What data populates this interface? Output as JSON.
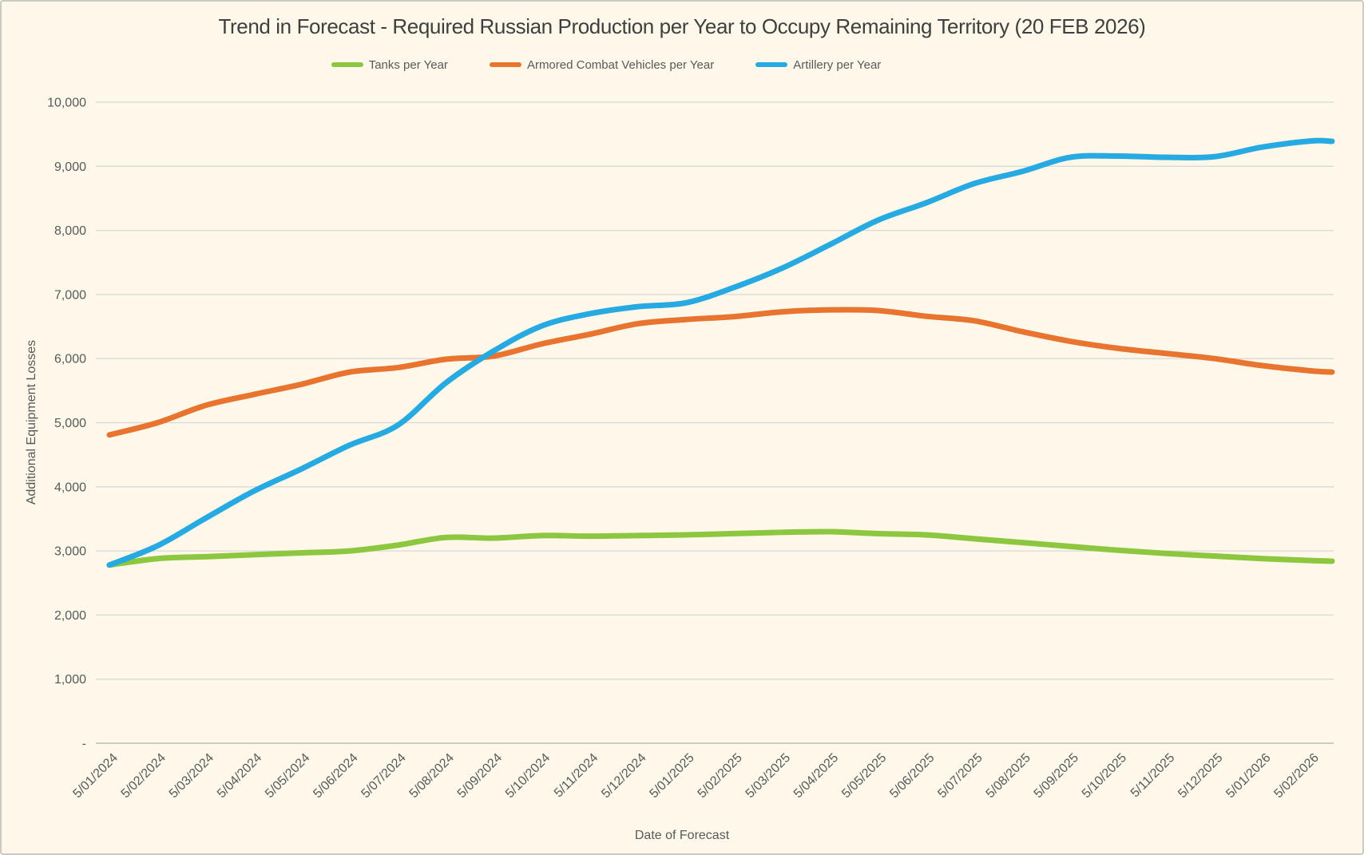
{
  "chart_data": {
    "type": "line",
    "title": "Trend in Forecast - Required Russian Production per Year to Occupy Remaining Territory (20 FEB 2026)",
    "xlabel": "Date of Forecast",
    "ylabel": "Additional Equipment Losses",
    "ylim": [
      0,
      10000
    ],
    "ytick_step": 1000,
    "zero_tick_label": "-",
    "grid": true,
    "legend_position": "top-center",
    "x_tick_labels": [
      "5/01/2024",
      "5/02/2024",
      "5/03/2024",
      "5/04/2024",
      "5/05/2024",
      "5/06/2024",
      "5/07/2024",
      "5/08/2024",
      "5/09/2024",
      "5/10/2024",
      "5/11/2024",
      "5/12/2024",
      "5/01/2025",
      "5/02/2025",
      "5/03/2025",
      "5/04/2025",
      "5/05/2025",
      "5/06/2025",
      "5/07/2025",
      "5/08/2025",
      "5/09/2025",
      "5/10/2025",
      "5/11/2025",
      "5/12/2025",
      "5/01/2026",
      "5/02/2026"
    ],
    "final_point_label": "20 FEB 2026",
    "series": [
      {
        "name": "Tanks per Year",
        "color": "#8DC63F",
        "values": [
          2780,
          2880,
          2910,
          2940,
          2970,
          3000,
          3090,
          3210,
          3200,
          3240,
          3230,
          3240,
          3250,
          3270,
          3290,
          3300,
          3270,
          3250,
          3190,
          3130,
          3070,
          3010,
          2960,
          2920,
          2880,
          2850,
          2840
        ]
      },
      {
        "name": "Armored Combat Vehicles per Year",
        "color": "#E8742F",
        "values": [
          4810,
          5000,
          5270,
          5440,
          5600,
          5790,
          5860,
          5990,
          6040,
          6230,
          6380,
          6545,
          6610,
          6655,
          6730,
          6760,
          6750,
          6660,
          6590,
          6420,
          6270,
          6160,
          6080,
          6000,
          5890,
          5810,
          5790
        ]
      },
      {
        "name": "Artillery per Year",
        "color": "#27A9E1",
        "values": [
          2780,
          3080,
          3510,
          3930,
          4280,
          4650,
          4960,
          5620,
          6120,
          6510,
          6700,
          6810,
          6870,
          7110,
          7410,
          7780,
          8160,
          8430,
          8730,
          8920,
          9140,
          9160,
          9140,
          9150,
          9300,
          9395,
          9390
        ]
      }
    ],
    "colors": {
      "background": "#FDF8EA",
      "gridline": "#D9D8D4",
      "zero_axis_line": "#BBBAB6",
      "tick_text": "#595959",
      "title_text": "#3F3F3F"
    }
  }
}
